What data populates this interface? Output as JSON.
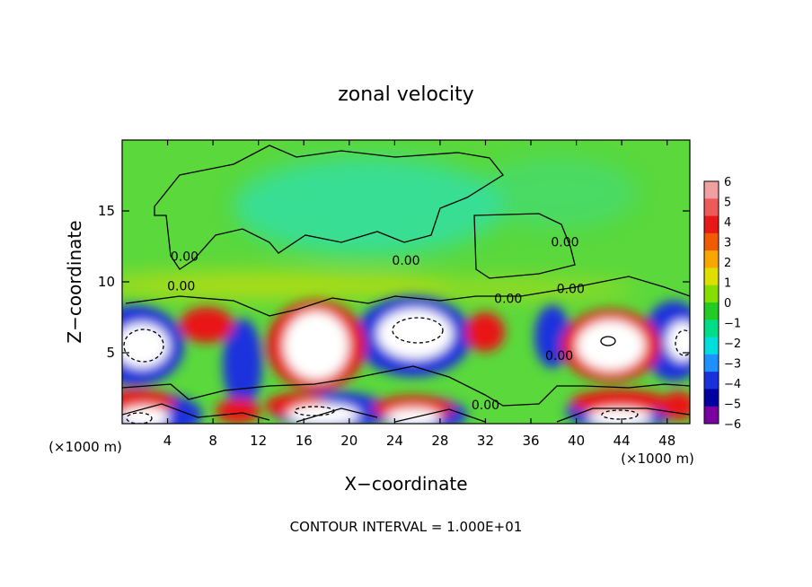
{
  "chart_data": {
    "type": "heatmap",
    "title": "zonal velocity",
    "xlabel": "X−coordinate",
    "ylabel": "Z−coordinate",
    "x_unit_left": "(×1000 m)",
    "x_unit_right": "(×1000 m)",
    "footer": "CONTOUR INTERVAL = 1.000E+01",
    "xlim": [
      0,
      50
    ],
    "ylim": [
      0,
      20
    ],
    "x_ticks": [
      "4",
      "8",
      "12",
      "16",
      "20",
      "24",
      "28",
      "32",
      "36",
      "40",
      "44",
      "48"
    ],
    "x_tick_values": [
      4,
      8,
      12,
      16,
      20,
      24,
      28,
      32,
      36,
      40,
      44,
      48
    ],
    "y_ticks": [
      "5",
      "10",
      "15"
    ],
    "y_tick_values": [
      5,
      10,
      15
    ],
    "contour_labels": [
      {
        "text": "0.00",
        "x": 5.5,
        "y": 11.5
      },
      {
        "text": "0.00",
        "x": 5.2,
        "y": 9.4
      },
      {
        "text": "0.00",
        "x": 25,
        "y": 11.2
      },
      {
        "text": "0.00",
        "x": 34,
        "y": 8.5
      },
      {
        "text": "0.00",
        "x": 39,
        "y": 12.5
      },
      {
        "text": "0.00",
        "x": 39.5,
        "y": 9.2
      },
      {
        "text": "0.00",
        "x": 38.5,
        "y": 4.5
      },
      {
        "text": "0.00",
        "x": 32,
        "y": 1.0
      }
    ],
    "colorbar": {
      "labels": [
        "6",
        "5",
        "4",
        "3",
        "2",
        "1",
        "0",
        "−1",
        "−2",
        "−3",
        "−4",
        "−5",
        "−6"
      ],
      "colors": [
        "#f0a0a0",
        "#ee5a5a",
        "#e81818",
        "#f05a00",
        "#f6a800",
        "#dede00",
        "#88dd00",
        "#22cc22",
        "#00dd88",
        "#00dddd",
        "#1e90ff",
        "#1a30dd",
        "#0000a0",
        "#7800a0"
      ]
    },
    "colors": {
      "background_field": "#5ad83c",
      "upper_cyan": "#2ee0b0",
      "positive_core": "#ffffff",
      "positive_ring": "#e81818",
      "negative_ring": "#1a30dd"
    }
  }
}
